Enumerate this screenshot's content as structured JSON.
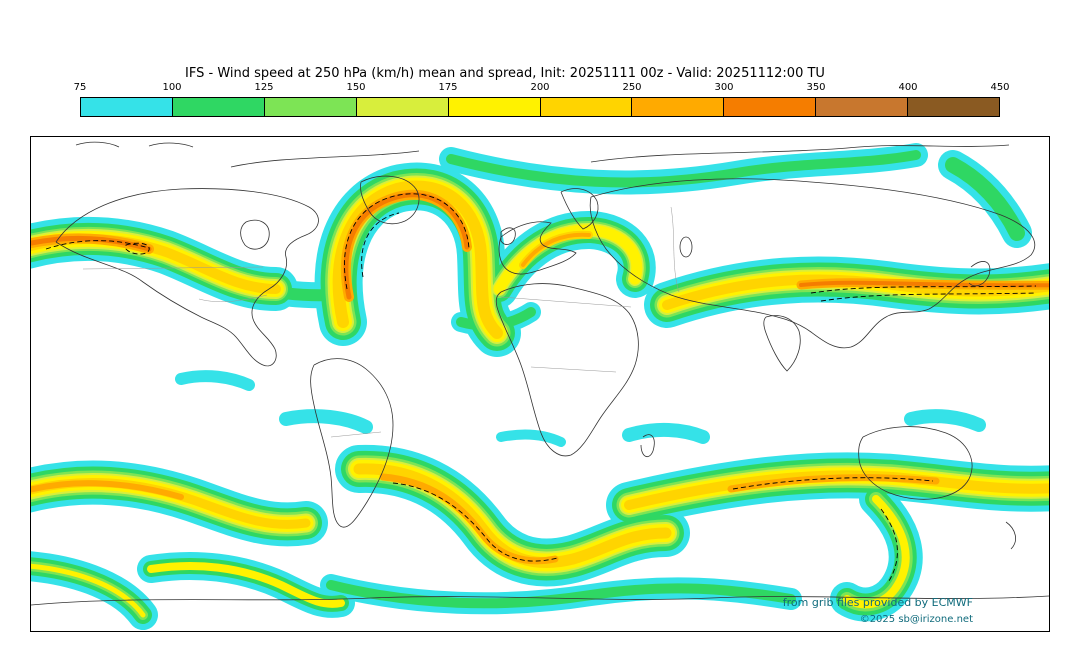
{
  "header": {
    "title": "IFS - Wind speed at 250 hPa (km/h) mean and spread, Init: 20251111 00z - Valid: 20251112:00 TU"
  },
  "colorbar": {
    "ticks": [
      "75",
      "100",
      "125",
      "150",
      "175",
      "200",
      "250",
      "300",
      "350",
      "400",
      "450"
    ],
    "colors": [
      "#35e2e8",
      "#2fd763",
      "#7de455",
      "#d8ee3c",
      "#fff200",
      "#ffd400",
      "#ffaa00",
      "#f57d00",
      "#c8772e",
      "#8a5a22"
    ]
  },
  "footer": {
    "credit": "from grib files provided by ECMWF",
    "copyright": "©2025 sb@irizone.net",
    "color": "#106b7c"
  },
  "chart_data": {
    "type": "heatmap",
    "title": "IFS - Wind speed at 250 hPa (km/h) mean and spread",
    "init": "20251111 00z",
    "valid": "20251112:00 TU",
    "units": "km/h",
    "scale_breakpoints": [
      75,
      100,
      125,
      150,
      175,
      200,
      250,
      300,
      350,
      400,
      450
    ],
    "scale_colors": [
      "#35e2e8",
      "#2fd763",
      "#7de455",
      "#d8ee3c",
      "#fff200",
      "#ffd400",
      "#ffaa00",
      "#f57d00",
      "#c8772e",
      "#8a5a22"
    ],
    "legend_position": "top"
  }
}
